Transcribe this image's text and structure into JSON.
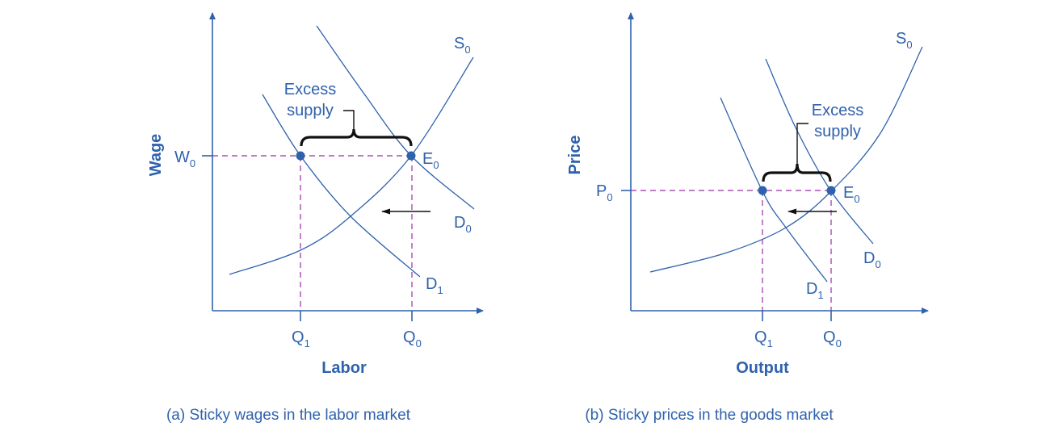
{
  "colors": {
    "curves": "#2f62ad",
    "guides": "#9a2fa8",
    "annotation": "#111111"
  },
  "panel_a": {
    "caption": "(a) Sticky wages in the labor market",
    "y_axis": "Wage",
    "x_axis": "Labor",
    "price_level": {
      "base": "W",
      "sub": "0"
    },
    "equilibrium": {
      "base": "E",
      "sub": "0"
    },
    "supply": {
      "base": "S",
      "sub": "0"
    },
    "demand_original": {
      "base": "D",
      "sub": "0"
    },
    "demand_new": {
      "base": "D",
      "sub": "1"
    },
    "q_new": {
      "base": "Q",
      "sub": "1"
    },
    "q_original": {
      "base": "Q",
      "sub": "0"
    },
    "annotation": [
      "Excess",
      "supply"
    ]
  },
  "panel_b": {
    "caption": "(b) Sticky prices in the goods market",
    "y_axis": "Price",
    "x_axis": "Output",
    "price_level": {
      "base": "P",
      "sub": "0"
    },
    "equilibrium": {
      "base": "E",
      "sub": "0"
    },
    "supply": {
      "base": "S",
      "sub": "0"
    },
    "demand_original": {
      "base": "D",
      "sub": "0"
    },
    "demand_new": {
      "base": "D",
      "sub": "1"
    },
    "q_new": {
      "base": "Q",
      "sub": "1"
    },
    "q_original": {
      "base": "Q",
      "sub": "0"
    },
    "annotation": [
      "Excess",
      "supply"
    ]
  }
}
